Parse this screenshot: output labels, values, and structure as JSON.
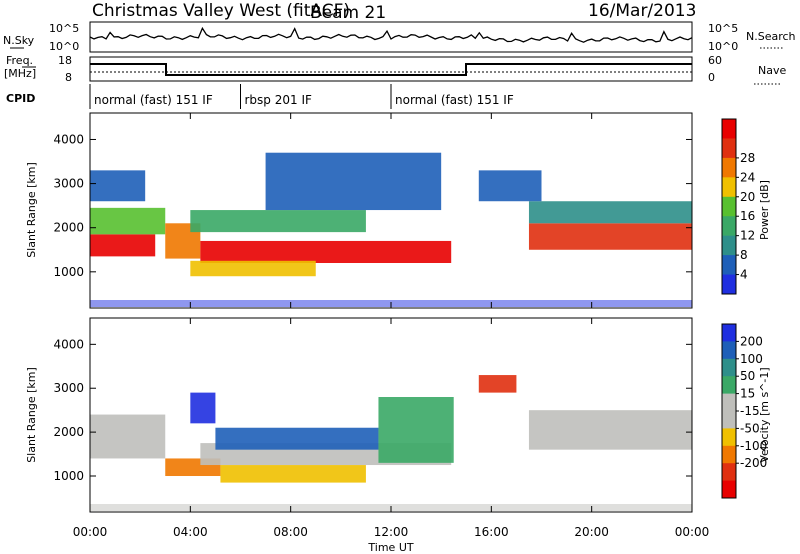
{
  "header": {
    "radar": "Christmas Valley West (fitACF)",
    "beam": "Beam 21",
    "date": "16/Mar/2013"
  },
  "noise_panel": {
    "left_label": "N.Sky",
    "left_ticks": [
      "10^5",
      "10^0"
    ],
    "right_label": "N.Search",
    "right_ticks": [
      "10^5",
      "10^0"
    ]
  },
  "freq_panel": {
    "left_label_1": "Freq.",
    "left_label_2": "[MHz]",
    "left_ticks": [
      "18",
      "8"
    ],
    "right_label": "Nave",
    "right_ticks": [
      "60",
      "0"
    ]
  },
  "cpid": {
    "label": "CPID",
    "modes": [
      {
        "name": "normal (fast) 151 IF",
        "start_hour": 0,
        "end_hour": 6
      },
      {
        "name": "rbsp 201 IF",
        "start_hour": 6,
        "end_hour": 12
      },
      {
        "name": "normal (fast) 151 IF",
        "start_hour": 12,
        "end_hour": 24
      }
    ]
  },
  "colors": {
    "power_scale": [
      "#1f2fe0",
      "#1e5fb8",
      "#2e8f8a",
      "#3aa866",
      "#58c030",
      "#f0c000",
      "#f07800",
      "#e03010",
      "#e80000"
    ],
    "velocity_scale": [
      "#1f2fe0",
      "#1e5fb8",
      "#2e8f8a",
      "#3aa866",
      "#bfbfbb",
      "#bfbfbb",
      "#f0c000",
      "#f07800",
      "#e03010",
      "#e80000"
    ]
  },
  "chart_data": [
    {
      "type": "heatmap",
      "title": "Power",
      "xlabel": "Time UT",
      "ylabel": "Slant Range [km]",
      "xlim_hours": [
        0,
        24
      ],
      "ylim": [
        180,
        4600
      ],
      "x_ticks": [
        "00:00",
        "04:00",
        "08:00",
        "12:00",
        "16:00",
        "20:00",
        "00:00"
      ],
      "y_ticks": [
        1000,
        2000,
        3000,
        4000
      ],
      "colorbar_label": "Power [dB]",
      "colorbar_ticks": [
        "4",
        "8",
        "12",
        "16",
        "20",
        "24",
        "28"
      ],
      "regions": [
        {
          "t0": 0.0,
          "t1": 2.6,
          "r0": 1350,
          "r1": 1850,
          "level": 8
        },
        {
          "t0": 0.0,
          "t1": 3.0,
          "r0": 1850,
          "r1": 2450,
          "level": 4
        },
        {
          "t0": 0.0,
          "t1": 2.2,
          "r0": 2600,
          "r1": 3300,
          "level": 1
        },
        {
          "t0": 3.0,
          "t1": 4.4,
          "r0": 1300,
          "r1": 2100,
          "level": 6
        },
        {
          "t0": 4.4,
          "t1": 14.4,
          "r0": 1200,
          "r1": 1700,
          "level": 8
        },
        {
          "t0": 4.0,
          "t1": 9.0,
          "r0": 900,
          "r1": 1250,
          "level": 5
        },
        {
          "t0": 4.0,
          "t1": 11.0,
          "r0": 1900,
          "r1": 2400,
          "level": 3
        },
        {
          "t0": 7.0,
          "t1": 14.0,
          "r0": 2400,
          "r1": 3700,
          "level": 1
        },
        {
          "t0": 17.5,
          "t1": 24.0,
          "r0": 1500,
          "r1": 2100,
          "level": 7
        },
        {
          "t0": 17.5,
          "t1": 24.0,
          "r0": 2100,
          "r1": 2600,
          "level": 2
        },
        {
          "t0": 15.5,
          "t1": 18.0,
          "r0": 2600,
          "r1": 3300,
          "level": 1
        }
      ]
    },
    {
      "type": "heatmap",
      "title": "Velocity",
      "xlabel": "Time UT",
      "ylabel": "Slant Range [km]",
      "xlim_hours": [
        0,
        24
      ],
      "ylim": [
        180,
        4600
      ],
      "x_ticks": [
        "00:00",
        "04:00",
        "08:00",
        "12:00",
        "16:00",
        "20:00",
        "00:00"
      ],
      "y_ticks": [
        1000,
        2000,
        3000,
        4000
      ],
      "colorbar_label": "Velocity [m s^-1]",
      "colorbar_ticks": [
        "200",
        "100",
        "50",
        "15",
        "-15",
        "-50",
        "-100",
        "-200"
      ],
      "regions": [
        {
          "t0": 0.0,
          "t1": 3.0,
          "r0": 1400,
          "r1": 2400,
          "level": 4
        },
        {
          "t0": 3.0,
          "t1": 5.2,
          "r0": 1000,
          "r1": 1400,
          "level": 7
        },
        {
          "t0": 5.2,
          "t1": 11.0,
          "r0": 850,
          "r1": 1250,
          "level": 6
        },
        {
          "t0": 4.4,
          "t1": 14.4,
          "r0": 1250,
          "r1": 1750,
          "level": 5
        },
        {
          "t0": 4.0,
          "t1": 5.0,
          "r0": 2200,
          "r1": 2900,
          "level": 0
        },
        {
          "t0": 5.0,
          "t1": 11.5,
          "r0": 1600,
          "r1": 2100,
          "level": 1
        },
        {
          "t0": 11.5,
          "t1": 14.5,
          "r0": 1300,
          "r1": 2800,
          "level": 3
        },
        {
          "t0": 15.5,
          "t1": 17.0,
          "r0": 2900,
          "r1": 3300,
          "level": 8
        },
        {
          "t0": 17.5,
          "t1": 24.0,
          "r0": 1600,
          "r1": 2500,
          "level": 4
        }
      ]
    }
  ]
}
